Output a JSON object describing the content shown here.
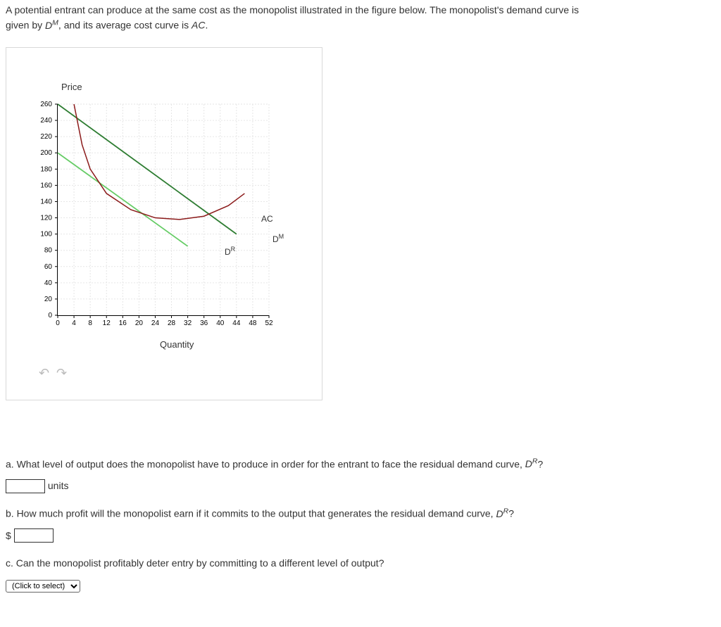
{
  "intro": {
    "line1_a": "A potential entrant can produce at the same cost as the monopolist illustrated in the figure below. The monopolist's demand curve is",
    "line2_a": "given by ",
    "dm_base": "D",
    "dm_sup": "M",
    "line2_b": ", and its average cost curve is ",
    "ac_ital": "AC",
    "period": "."
  },
  "chart": {
    "y_title": "Price",
    "x_title": "Quantity",
    "y_ticks": [
      0,
      20,
      40,
      60,
      80,
      100,
      120,
      140,
      160,
      180,
      200,
      220,
      240,
      260
    ],
    "x_ticks": [
      0,
      4,
      8,
      12,
      16,
      20,
      24,
      28,
      32,
      36,
      40,
      44,
      48,
      52
    ],
    "xlim": [
      0,
      52
    ],
    "ylim": [
      0,
      260
    ],
    "labels": {
      "ac": "AC",
      "dm_base": "D",
      "dm_sup": "M",
      "dr_base": "D",
      "dr_sup": "R"
    },
    "series": {
      "dm": {
        "color": "#2e7d32",
        "x1": 0,
        "y1": 260,
        "x2": 44,
        "y2": 100
      },
      "dr": {
        "color": "#66cc66",
        "x1": 0,
        "y1": 200,
        "x2": 32,
        "y2": 85
      },
      "ac": {
        "color": "#8b1a1a",
        "points": [
          [
            4,
            260
          ],
          [
            6,
            210
          ],
          [
            8,
            180
          ],
          [
            12,
            150
          ],
          [
            18,
            130
          ],
          [
            24,
            120
          ],
          [
            30,
            118
          ],
          [
            36,
            122
          ],
          [
            42,
            135
          ],
          [
            46,
            150
          ]
        ]
      }
    },
    "grid_color": "#e6e6e6",
    "bg": "#ffffff"
  },
  "toolbar": {
    "undo": "↶",
    "redo": "↷"
  },
  "qa": {
    "a_text_1": "a. What level of output does the monopolist have to produce in order for the entrant to face the residual demand curve, ",
    "a_units": "units",
    "b_text_1": "b. How much profit will the monopolist earn if it commits to the output that generates the residual demand curve, ",
    "dr_base": "D",
    "dr_sup": "R",
    "qmark": "?",
    "dollar": "$",
    "c_text": "c. Can the monopolist profitably deter entry by committing to a different level of output?",
    "select_placeholder": "(Click to select)"
  }
}
